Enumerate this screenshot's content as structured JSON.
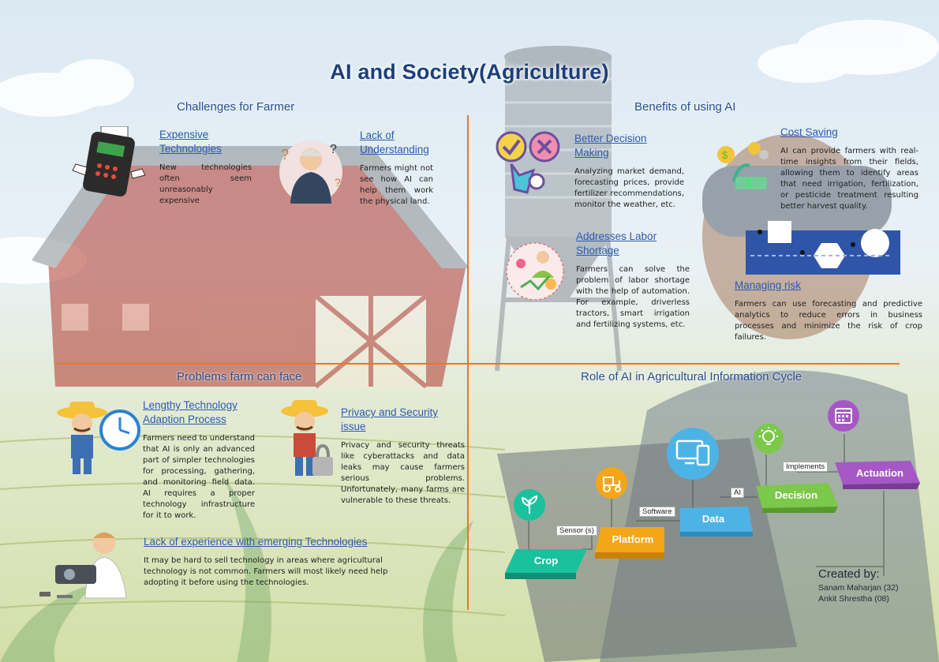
{
  "title": "AI and Society(Agriculture)",
  "sections": {
    "challenges": {
      "heading": "Challenges for Farmer",
      "items": [
        {
          "title": "Expensive Technologies",
          "text": "New technologies often seem unreasonably expensive"
        },
        {
          "title": "Lack of Understanding",
          "text": "Farmers might not see how AI can help them work the physical land."
        }
      ]
    },
    "benefits": {
      "heading": "Benefits of using AI",
      "items": [
        {
          "title": "Better Decision Making",
          "text": "Analyzing market demand, forecasting prices, provide fertilizer recommendations, monitor the weather, etc."
        },
        {
          "title": "Cost Saving",
          "text": "AI can provide farmers with real-time insights from their fields, allowing them to identify areas that need irrigation, fertilization, or pesticide treatment resulting better harvest quality."
        },
        {
          "title": "Addresses Labor Shortage",
          "text": "Farmers can solve the problem of labor shortage with the help of automation. For example, driverless tractors, smart irrigation and fertilizing systems, etc."
        },
        {
          "title": "Managing risk",
          "text": "Farmers can use forecasting and predictive analytics to reduce errors in business processes and minimize the risk of crop failures."
        }
      ]
    },
    "problems": {
      "heading": "Problems farm can face",
      "items": [
        {
          "title": "Lengthy Technology Adaption Process",
          "text": "Farmers need to understand that AI is only an advanced part of simpler technologies for processing, gathering, and monitoring field data. AI requires a proper technology infrastructure for it to work."
        },
        {
          "title": "Privacy and Security issue",
          "text": "Privacy and security threats like cyberattacks and data leaks may cause farmers serious problems. Unfortunately, many farms are vulnerable to these threats."
        },
        {
          "title": "Lack of experience with emerging Technologies",
          "text": "It may be hard to sell technology in areas where agricultural technology is not common. Farmers will most likely need help adopting it before using the technologies."
        }
      ]
    },
    "cycle": {
      "heading": "Role of AI in Agricultural Information Cycle",
      "stages": [
        "Crop",
        "Platform",
        "Data",
        "Decision",
        "Actuation"
      ],
      "connectors": [
        "Sensor (s)",
        "Software",
        "AI",
        "Implements"
      ],
      "colors": [
        "#19c29d",
        "#f5a616",
        "#4db3e6",
        "#7cc84a",
        "#a657c6"
      ]
    }
  },
  "credits": {
    "label": "Created by:",
    "names": [
      "Sanam Maharjan (32)",
      "Ankit Shrestha (08)"
    ]
  },
  "icons": [
    "cash-register-icon",
    "confused-farmer-icon",
    "check-cross-icon",
    "money-growth-icon",
    "worker-network-icon",
    "risk-path-icon",
    "clock-farmer-icon",
    "lock-farmer-icon",
    "technician-icon",
    "sprout-icon",
    "tractor-icon",
    "monitor-icon",
    "bulb-icon",
    "calendar-icon"
  ]
}
